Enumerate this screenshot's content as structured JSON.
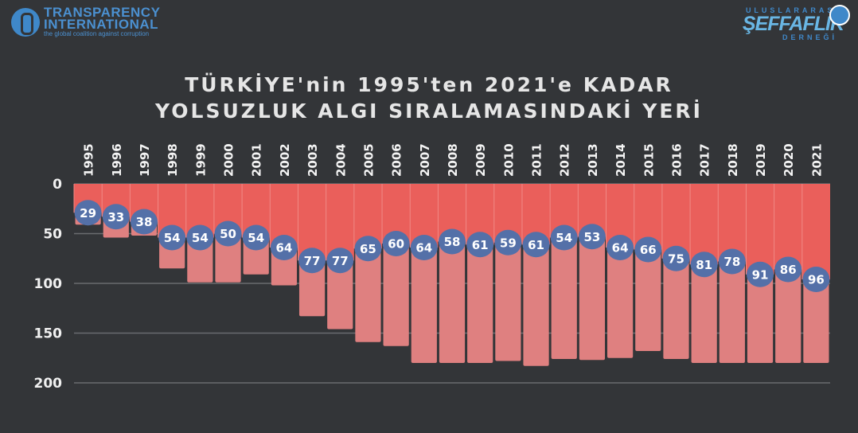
{
  "logos": {
    "left": {
      "line1": "TRANSPARENCY",
      "line2": "INTERNATIONAL",
      "tagline": "the global coalition against corruption"
    },
    "right": {
      "top": "ULUSLARARASI",
      "main": "ŞEFFAFLIK",
      "bottom": "DERNEĞİ"
    }
  },
  "colors": {
    "background": "#333538",
    "rank_bar": "#ea5f5b",
    "total_bar": "#df8080",
    "label_circle": "#5470a8"
  },
  "chart_data": {
    "type": "bar",
    "title": "TÜRKİYE'nin 1995'ten 2021'e KADAR YOLSUZLUK ALGI SIRALAMASINDAKİ YERİ",
    "title_lines": [
      "TÜRKİYE'nin 1995'ten 2021'e KADAR",
      "YOLSUZLUK ALGI SIRALAMASINDAKİ YERİ"
    ],
    "categories": [
      "1995",
      "1996",
      "1997",
      "1998",
      "1999",
      "2000",
      "2001",
      "2002",
      "2003",
      "2004",
      "2005",
      "2006",
      "2007",
      "2008",
      "2009",
      "2010",
      "2011",
      "2012",
      "2013",
      "2014",
      "2015",
      "2016",
      "2017",
      "2018",
      "2019",
      "2020",
      "2021"
    ],
    "series": [
      {
        "key": "rank",
        "values": [
          29,
          33,
          38,
          54,
          54,
          50,
          54,
          64,
          77,
          77,
          65,
          60,
          64,
          58,
          61,
          59,
          61,
          54,
          53,
          64,
          66,
          75,
          81,
          78,
          91,
          86,
          96
        ]
      },
      {
        "key": "total",
        "values": [
          41,
          54,
          52,
          85,
          99,
          99,
          91,
          102,
          133,
          146,
          159,
          163,
          180,
          180,
          180,
          178,
          183,
          176,
          177,
          175,
          168,
          176,
          180,
          180,
          180,
          180,
          180
        ]
      }
    ],
    "y_axis": {
      "inverted": true,
      "ylim": [
        0,
        200
      ],
      "ticks": [
        0,
        50,
        100,
        150,
        200
      ]
    },
    "grid": true,
    "legend": "none"
  }
}
